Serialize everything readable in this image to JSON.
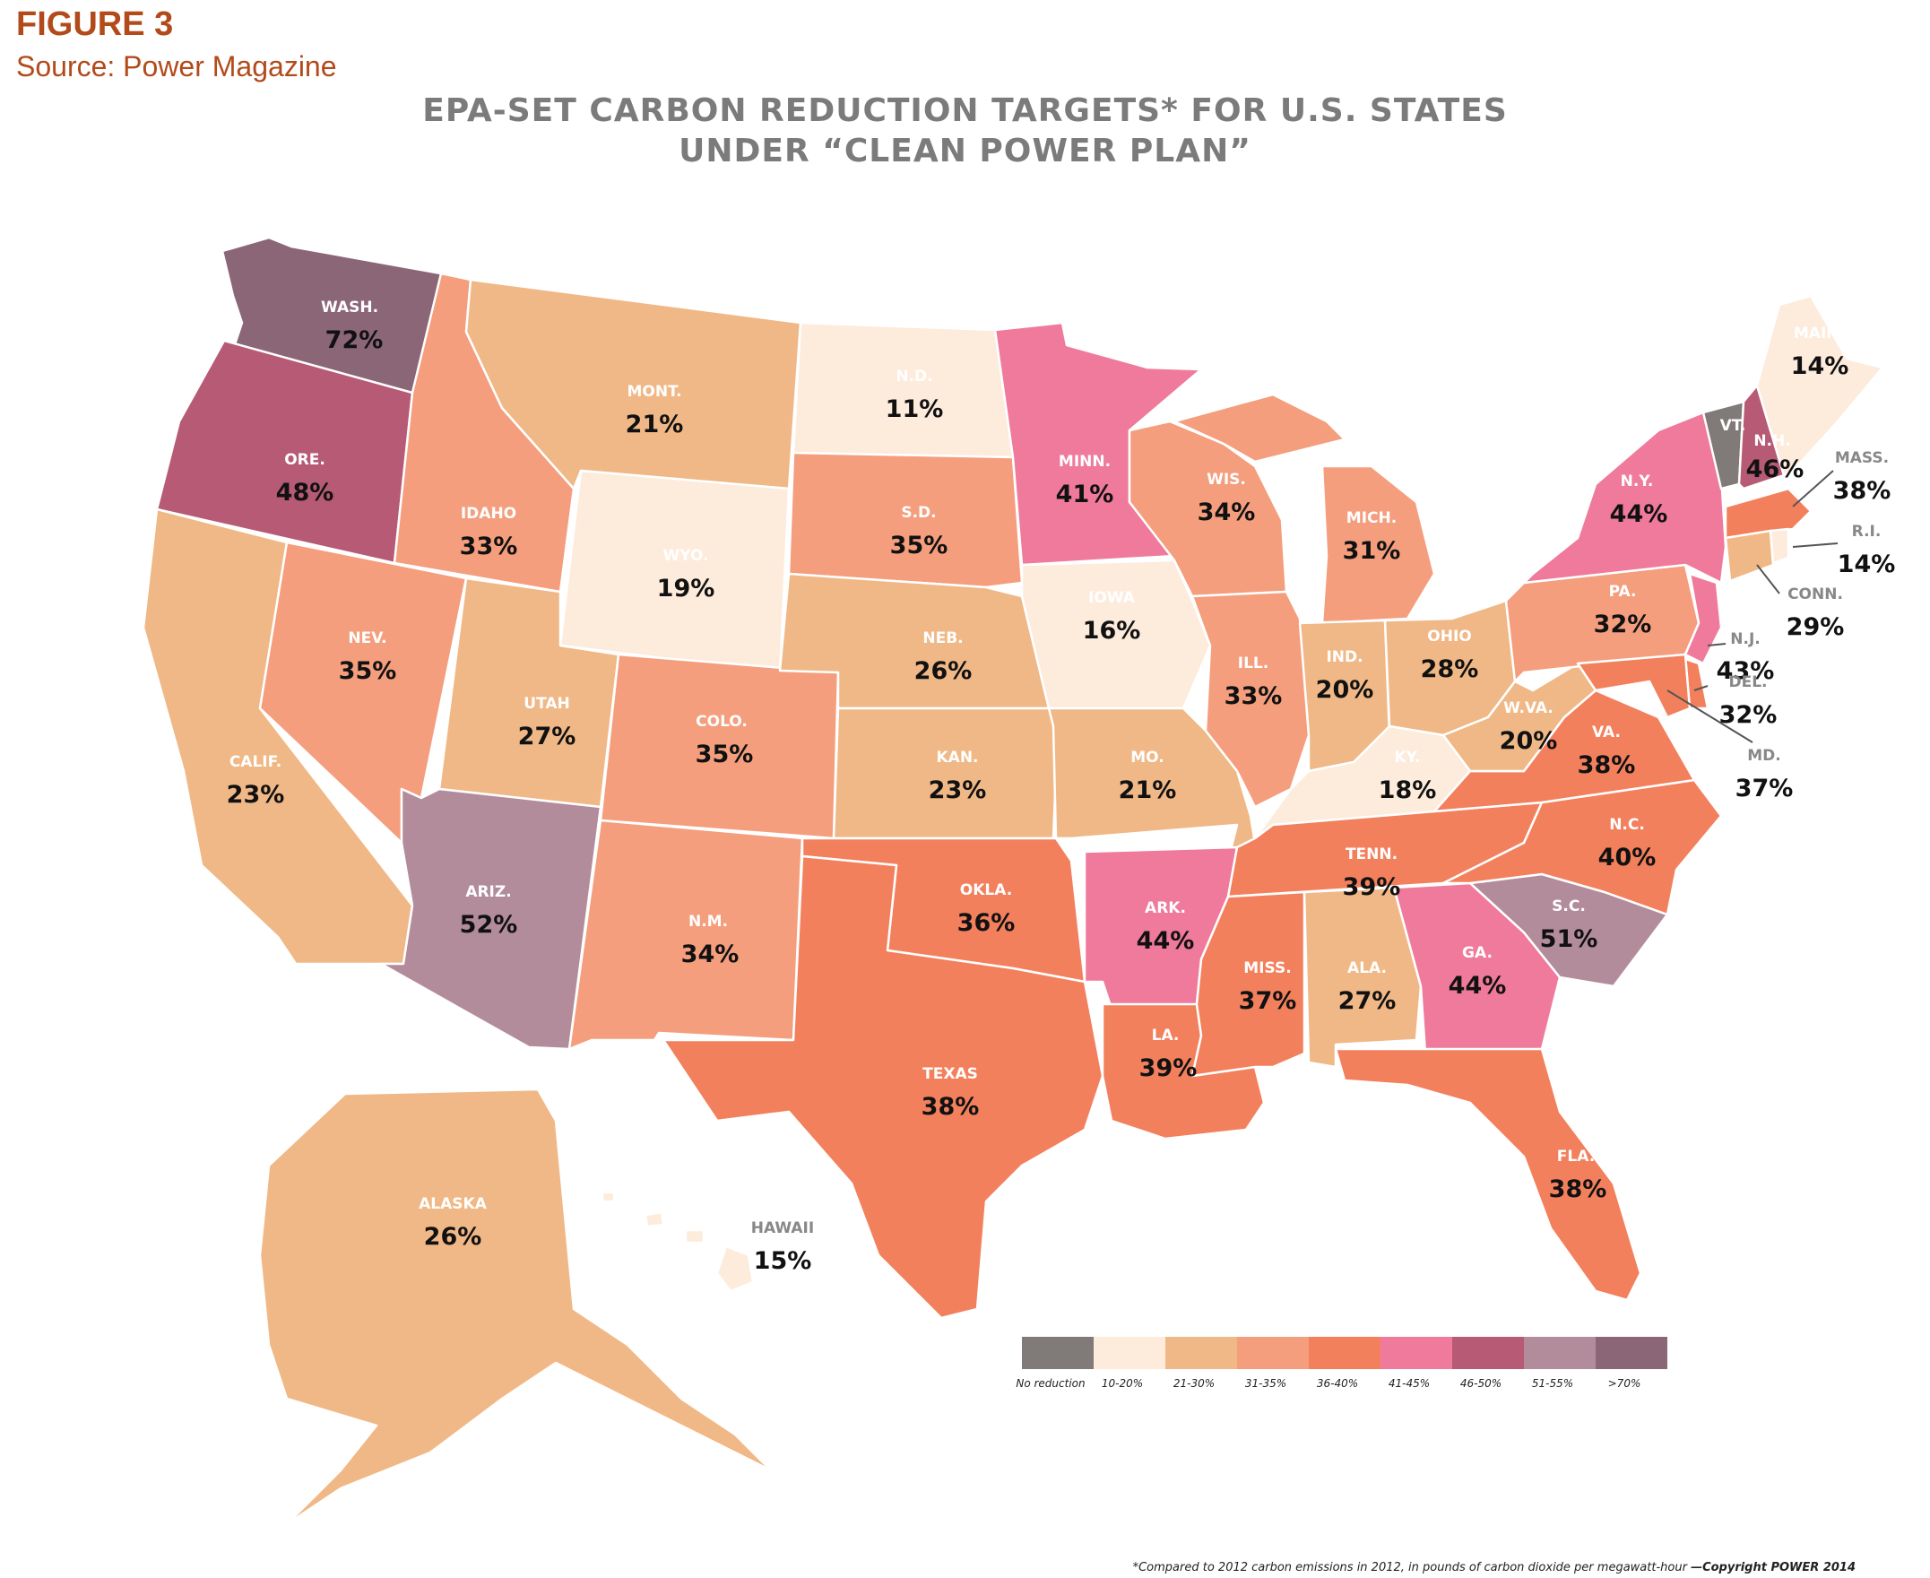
{
  "header": {
    "figure_label": "FIGURE 3",
    "source": "Source: Power Magazine",
    "title_line1": "EPA-SET CARBON REDUCTION TARGETS* FOR U.S. STATES",
    "title_line2": "UNDER “CLEAN POWER PLAN”"
  },
  "colors": {
    "no_reduction": "#807a78",
    "r10_20": "#fdebdc",
    "r21_30": "#f0b886",
    "r31_35": "#f49e7e",
    "r36_40": "#f3805d",
    "r41_45": "#ef7a9c",
    "r46_50": "#b65a76",
    "r51_55": "#b38c9c",
    "r70_plus": "#8b6677"
  },
  "legend": [
    {
      "label": "No reduction",
      "color": "#807a78"
    },
    {
      "label": "10-20%",
      "color": "#fdebdc"
    },
    {
      "label": "21-30%",
      "color": "#f0b886"
    },
    {
      "label": "31-35%",
      "color": "#f49e7e"
    },
    {
      "label": "36-40%",
      "color": "#f3805d"
    },
    {
      "label": "41-45%",
      "color": "#ef7a9c"
    },
    {
      "label": "46-50%",
      "color": "#b65a76"
    },
    {
      "label": "51-55%",
      "color": "#b38c9c"
    },
    {
      "label": ">70%",
      "color": "#8b6677"
    }
  ],
  "states": {
    "wa": {
      "abbr": "WASH.",
      "pct": "72%"
    },
    "or": {
      "abbr": "ORE.",
      "pct": "48%"
    },
    "ca": {
      "abbr": "CALIF.",
      "pct": "23%"
    },
    "id": {
      "abbr": "IDAHO",
      "pct": "33%"
    },
    "nv": {
      "abbr": "NEV.",
      "pct": "35%"
    },
    "mt": {
      "abbr": "MONT.",
      "pct": "21%"
    },
    "wy": {
      "abbr": "WYO.",
      "pct": "19%"
    },
    "ut": {
      "abbr": "UTAH",
      "pct": "27%"
    },
    "az": {
      "abbr": "ARIZ.",
      "pct": "52%"
    },
    "co": {
      "abbr": "COLO.",
      "pct": "35%"
    },
    "nm": {
      "abbr": "N.M.",
      "pct": "34%"
    },
    "nd": {
      "abbr": "N.D.",
      "pct": "11%"
    },
    "sd": {
      "abbr": "S.D.",
      "pct": "35%"
    },
    "ne": {
      "abbr": "NEB.",
      "pct": "26%"
    },
    "ks": {
      "abbr": "KAN.",
      "pct": "23%"
    },
    "ok": {
      "abbr": "OKLA.",
      "pct": "36%"
    },
    "tx": {
      "abbr": "TEXAS",
      "pct": "38%"
    },
    "mn": {
      "abbr": "MINN.",
      "pct": "41%"
    },
    "ia": {
      "abbr": "IOWA",
      "pct": "16%"
    },
    "mo": {
      "abbr": "MO.",
      "pct": "21%"
    },
    "ar": {
      "abbr": "ARK.",
      "pct": "44%"
    },
    "la": {
      "abbr": "LA.",
      "pct": "39%"
    },
    "wi": {
      "abbr": "WIS.",
      "pct": "34%"
    },
    "il": {
      "abbr": "ILL.",
      "pct": "33%"
    },
    "mi": {
      "abbr": "MICH.",
      "pct": "31%"
    },
    "in": {
      "abbr": "IND.",
      "pct": "20%"
    },
    "oh": {
      "abbr": "OHIO",
      "pct": "28%"
    },
    "ky": {
      "abbr": "KY.",
      "pct": "18%"
    },
    "tn": {
      "abbr": "TENN.",
      "pct": "39%"
    },
    "ms": {
      "abbr": "MISS.",
      "pct": "37%"
    },
    "al": {
      "abbr": "ALA.",
      "pct": "27%"
    },
    "ga": {
      "abbr": "GA.",
      "pct": "44%"
    },
    "fl": {
      "abbr": "FLA.",
      "pct": "38%"
    },
    "sc": {
      "abbr": "S.C.",
      "pct": "51%"
    },
    "nc": {
      "abbr": "N.C.",
      "pct": "40%"
    },
    "va": {
      "abbr": "VA.",
      "pct": "38%"
    },
    "wv": {
      "abbr": "W.VA.",
      "pct": "20%"
    },
    "pa": {
      "abbr": "PA.",
      "pct": "32%"
    },
    "ny": {
      "abbr": "N.Y.",
      "pct": "44%"
    },
    "vt": {
      "abbr": "VT.",
      "pct": ""
    },
    "nh": {
      "abbr": "N.H.",
      "pct": "46%"
    },
    "me": {
      "abbr": "MAINE",
      "pct": "14%"
    },
    "ma": {
      "abbr": "MASS.",
      "pct": "38%"
    },
    "ri": {
      "abbr": "R.I.",
      "pct": "14%"
    },
    "ct": {
      "abbr": "CONN.",
      "pct": "29%"
    },
    "nj": {
      "abbr": "N.J.",
      "pct": "43%"
    },
    "de": {
      "abbr": "DEL.",
      "pct": "32%"
    },
    "md": {
      "abbr": "MD.",
      "pct": "37%"
    },
    "ak": {
      "abbr": "ALASKA",
      "pct": "26%"
    },
    "hi": {
      "abbr": "HAWAII",
      "pct": "15%"
    }
  },
  "footnote": {
    "text": "*Compared to 2012 carbon emissions in 2012, in pounds of carbon dioxide per megawatt-hour ",
    "copyright": "—Copyright POWER 2014"
  }
}
